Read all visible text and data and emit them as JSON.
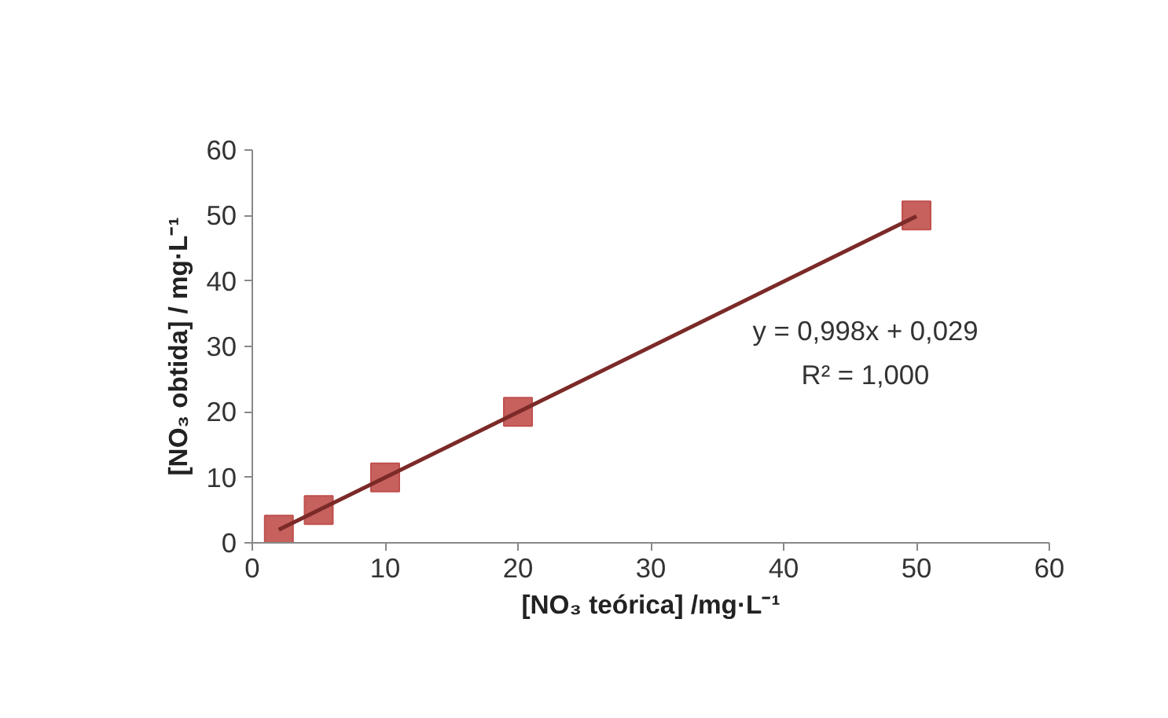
{
  "chart_data": {
    "type": "scatter",
    "xlabel": "[NO₃ teórica] /mg·L⁻¹",
    "ylabel": "[NO₃ obtida] / mg·L⁻¹",
    "xlim": [
      0,
      60
    ],
    "ylim": [
      0,
      60
    ],
    "xticks": [
      0,
      10,
      20,
      30,
      40,
      50,
      60
    ],
    "yticks": [
      0,
      10,
      20,
      30,
      40,
      50,
      60
    ],
    "grid": false,
    "series": [
      {
        "marker": "square",
        "color": "#c0504d",
        "x": [
          2,
          5,
          10,
          20,
          50
        ],
        "values": [
          2,
          5,
          10,
          20,
          50
        ]
      },
      {
        "type": "line",
        "marker": "none",
        "color": "#7b2a28",
        "x": [
          2,
          50
        ],
        "values": [
          2.0,
          49.9
        ]
      }
    ],
    "annotations": [
      "y = 0,998x + 0,029",
      "R² = 1,000"
    ]
  }
}
